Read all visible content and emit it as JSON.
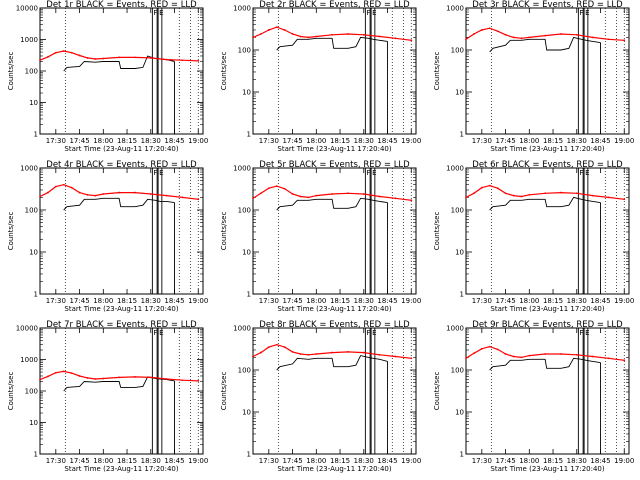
{
  "x_tick_labels": [
    "17:30",
    "17:45",
    "18:00",
    "18:15",
    "18:30",
    "18:45",
    "19:00"
  ],
  "y_tick_labels": [
    "1",
    "10",
    "100",
    "1000",
    "10000"
  ],
  "xlabel": "Start Time (23-Aug-11 17:20:40)",
  "ylabel": "Counts/sec",
  "flag_labels": [
    "F",
    "E"
  ],
  "colors": {
    "events": "#000000",
    "lld": "#ff0000"
  },
  "chart_data": [
    {
      "type": "line",
      "title": "Det 1r BLACK = Events, RED = LLD",
      "y_scale": "log",
      "ylim": [
        1,
        10000
      ],
      "dotted_vlines": [
        "17:36",
        "18:48",
        "18:55",
        "19:00"
      ],
      "series": [
        {
          "name": "Events",
          "x": [
            "17:35",
            "17:37",
            "17:45",
            "17:48",
            "17:55",
            "18:00",
            "18:10",
            "18:11",
            "18:20",
            "18:25",
            "18:28",
            "18:33",
            "18:36",
            "18:40",
            "18:45"
          ],
          "y": [
            100,
            130,
            140,
            200,
            190,
            200,
            200,
            120,
            120,
            130,
            300,
            250,
            240,
            230,
            200
          ]
        },
        {
          "name": "LLD",
          "x": [
            "17:20",
            "17:25",
            "17:30",
            "17:35",
            "17:40",
            "17:45",
            "17:50",
            "17:55",
            "18:00",
            "18:10",
            "18:20",
            "18:30",
            "18:40",
            "18:50",
            "19:00"
          ],
          "y": [
            220,
            280,
            380,
            430,
            380,
            310,
            260,
            240,
            250,
            270,
            270,
            260,
            230,
            220,
            210
          ]
        }
      ]
    },
    {
      "type": "line",
      "title": "Det 2r BLACK = Events, RED = LLD",
      "y_scale": "log",
      "ylim": [
        1,
        1000
      ],
      "dotted_vlines": [
        "17:36",
        "18:48",
        "18:55",
        "19:00"
      ],
      "series": [
        {
          "name": "Events",
          "x": [
            "17:35",
            "17:37",
            "17:45",
            "17:48",
            "17:55",
            "18:00",
            "18:10",
            "18:11",
            "18:20",
            "18:25",
            "18:28",
            "18:33",
            "18:36",
            "18:40",
            "18:45"
          ],
          "y": [
            100,
            120,
            130,
            180,
            180,
            190,
            190,
            110,
            110,
            120,
            200,
            190,
            180,
            170,
            160
          ]
        },
        {
          "name": "LLD",
          "x": [
            "17:20",
            "17:25",
            "17:30",
            "17:35",
            "17:40",
            "17:45",
            "17:50",
            "17:55",
            "18:00",
            "18:10",
            "18:20",
            "18:30",
            "18:40",
            "18:50",
            "19:00"
          ],
          "y": [
            200,
            240,
            300,
            350,
            300,
            240,
            210,
            200,
            210,
            230,
            240,
            230,
            210,
            190,
            170
          ]
        }
      ]
    },
    {
      "type": "line",
      "title": "Det 3r BLACK = Events, RED = LLD",
      "y_scale": "log",
      "ylim": [
        1,
        1000
      ],
      "dotted_vlines": [
        "17:36",
        "18:48",
        "18:55",
        "19:00"
      ],
      "series": [
        {
          "name": "Events",
          "x": [
            "17:35",
            "17:37",
            "17:45",
            "17:48",
            "17:55",
            "18:00",
            "18:10",
            "18:11",
            "18:20",
            "18:25",
            "18:28",
            "18:33",
            "18:36",
            "18:40",
            "18:45"
          ],
          "y": [
            90,
            110,
            130,
            170,
            170,
            180,
            180,
            100,
            100,
            110,
            200,
            180,
            170,
            160,
            150
          ]
        },
        {
          "name": "LLD",
          "x": [
            "17:20",
            "17:25",
            "17:30",
            "17:35",
            "17:40",
            "17:45",
            "17:50",
            "17:55",
            "18:00",
            "18:10",
            "18:20",
            "18:30",
            "18:40",
            "18:50",
            "19:00"
          ],
          "y": [
            180,
            240,
            300,
            330,
            280,
            230,
            200,
            190,
            200,
            220,
            240,
            230,
            200,
            180,
            170
          ]
        }
      ]
    },
    {
      "type": "line",
      "title": "Det 4r BLACK = Events, RED = LLD",
      "y_scale": "log",
      "ylim": [
        1,
        1000
      ],
      "dotted_vlines": [
        "17:36",
        "18:48",
        "18:55",
        "19:00"
      ],
      "series": [
        {
          "name": "Events",
          "x": [
            "17:35",
            "17:37",
            "17:45",
            "17:48",
            "17:55",
            "18:00",
            "18:10",
            "18:11",
            "18:20",
            "18:25",
            "18:28",
            "18:33",
            "18:36",
            "18:40",
            "18:45"
          ],
          "y": [
            100,
            120,
            130,
            180,
            180,
            190,
            190,
            120,
            120,
            130,
            180,
            170,
            160,
            160,
            150
          ]
        },
        {
          "name": "LLD",
          "x": [
            "17:20",
            "17:25",
            "17:30",
            "17:35",
            "17:40",
            "17:45",
            "17:50",
            "17:55",
            "18:00",
            "18:10",
            "18:20",
            "18:30",
            "18:40",
            "18:50",
            "19:00"
          ],
          "y": [
            210,
            260,
            360,
            400,
            340,
            260,
            230,
            220,
            240,
            260,
            260,
            240,
            220,
            200,
            180
          ]
        }
      ]
    },
    {
      "type": "line",
      "title": "Det 5r BLACK = Events, RED = LLD",
      "y_scale": "log",
      "ylim": [
        1,
        1000
      ],
      "dotted_vlines": [
        "17:36",
        "18:48",
        "18:55",
        "19:00"
      ],
      "series": [
        {
          "name": "Events",
          "x": [
            "17:35",
            "17:37",
            "17:45",
            "17:48",
            "17:55",
            "18:00",
            "18:10",
            "18:11",
            "18:20",
            "18:25",
            "18:28",
            "18:33",
            "18:36",
            "18:40",
            "18:45"
          ],
          "y": [
            100,
            120,
            130,
            170,
            170,
            180,
            180,
            110,
            110,
            120,
            190,
            180,
            170,
            160,
            150
          ]
        },
        {
          "name": "LLD",
          "x": [
            "17:20",
            "17:25",
            "17:30",
            "17:35",
            "17:40",
            "17:45",
            "17:50",
            "17:55",
            "18:00",
            "18:10",
            "18:20",
            "18:30",
            "18:40",
            "18:50",
            "19:00"
          ],
          "y": [
            190,
            250,
            330,
            370,
            320,
            240,
            210,
            200,
            220,
            240,
            250,
            240,
            210,
            190,
            170
          ]
        }
      ]
    },
    {
      "type": "line",
      "title": "Det 6r BLACK = Events, RED = LLD",
      "y_scale": "log",
      "ylim": [
        1,
        1000
      ],
      "dotted_vlines": [
        "17:36",
        "18:48",
        "18:55",
        "19:00"
      ],
      "series": [
        {
          "name": "Events",
          "x": [
            "17:35",
            "17:37",
            "17:45",
            "17:48",
            "17:55",
            "18:00",
            "18:10",
            "18:11",
            "18:20",
            "18:25",
            "18:28",
            "18:33",
            "18:36",
            "18:40",
            "18:45"
          ],
          "y": [
            100,
            120,
            130,
            170,
            170,
            180,
            180,
            120,
            120,
            130,
            200,
            180,
            170,
            160,
            150
          ]
        },
        {
          "name": "LLD",
          "x": [
            "17:20",
            "17:25",
            "17:30",
            "17:35",
            "17:40",
            "17:45",
            "17:50",
            "17:55",
            "18:00",
            "18:10",
            "18:20",
            "18:30",
            "18:40",
            "18:50",
            "19:00"
          ],
          "y": [
            200,
            250,
            340,
            380,
            330,
            250,
            220,
            210,
            230,
            250,
            260,
            250,
            220,
            200,
            180
          ]
        }
      ]
    },
    {
      "type": "line",
      "title": "Det 7r BLACK = Events, RED = LLD",
      "y_scale": "log",
      "ylim": [
        1,
        10000
      ],
      "dotted_vlines": [
        "17:36",
        "18:48",
        "18:55",
        "19:00"
      ],
      "series": [
        {
          "name": "Events",
          "x": [
            "17:35",
            "17:37",
            "17:45",
            "17:48",
            "17:55",
            "18:00",
            "18:10",
            "18:11",
            "18:20",
            "18:25",
            "18:28",
            "18:33",
            "18:36",
            "18:40",
            "18:45"
          ],
          "y": [
            100,
            130,
            140,
            200,
            190,
            200,
            200,
            130,
            130,
            140,
            280,
            250,
            240,
            230,
            210
          ]
        },
        {
          "name": "LLD",
          "x": [
            "17:20",
            "17:25",
            "17:30",
            "17:35",
            "17:40",
            "17:45",
            "17:50",
            "17:55",
            "18:00",
            "18:10",
            "18:20",
            "18:30",
            "18:40",
            "18:50",
            "19:00"
          ],
          "y": [
            230,
            290,
            380,
            420,
            370,
            300,
            260,
            240,
            250,
            270,
            280,
            270,
            240,
            220,
            210
          ]
        }
      ]
    },
    {
      "type": "line",
      "title": "Det 8r BLACK = Events, RED = LLD",
      "y_scale": "log",
      "ylim": [
        1,
        1000
      ],
      "dotted_vlines": [
        "17:36",
        "18:48",
        "18:55",
        "19:00"
      ],
      "series": [
        {
          "name": "Events",
          "x": [
            "17:35",
            "17:37",
            "17:45",
            "17:48",
            "17:55",
            "18:00",
            "18:10",
            "18:11",
            "18:20",
            "18:25",
            "18:28",
            "18:33",
            "18:36",
            "18:40",
            "18:45"
          ],
          "y": [
            100,
            120,
            140,
            190,
            180,
            190,
            190,
            120,
            120,
            130,
            220,
            200,
            190,
            180,
            160
          ]
        },
        {
          "name": "LLD",
          "x": [
            "17:20",
            "17:25",
            "17:30",
            "17:35",
            "17:40",
            "17:45",
            "17:50",
            "17:55",
            "18:00",
            "18:10",
            "18:20",
            "18:30",
            "18:40",
            "18:50",
            "19:00"
          ],
          "y": [
            210,
            260,
            350,
            400,
            350,
            270,
            240,
            230,
            240,
            260,
            270,
            260,
            230,
            210,
            190
          ]
        }
      ]
    },
    {
      "type": "line",
      "title": "Det 9r BLACK = Events, RED = LLD",
      "y_scale": "log",
      "ylim": [
        1,
        1000
      ],
      "dotted_vlines": [
        "17:36",
        "18:48",
        "18:55",
        "19:00"
      ],
      "series": [
        {
          "name": "Events",
          "x": [
            "17:35",
            "17:37",
            "17:45",
            "17:48",
            "17:55",
            "18:00",
            "18:10",
            "18:11",
            "18:20",
            "18:25",
            "18:28",
            "18:33",
            "18:36",
            "18:40",
            "18:45"
          ],
          "y": [
            100,
            120,
            130,
            170,
            170,
            180,
            180,
            110,
            110,
            120,
            190,
            180,
            170,
            160,
            150
          ]
        },
        {
          "name": "LLD",
          "x": [
            "17:20",
            "17:25",
            "17:30",
            "17:35",
            "17:40",
            "17:45",
            "17:50",
            "17:55",
            "18:00",
            "18:10",
            "18:20",
            "18:30",
            "18:40",
            "18:50",
            "19:00"
          ],
          "y": [
            190,
            250,
            320,
            360,
            310,
            240,
            210,
            200,
            220,
            240,
            240,
            230,
            210,
            190,
            170
          ]
        }
      ]
    }
  ]
}
